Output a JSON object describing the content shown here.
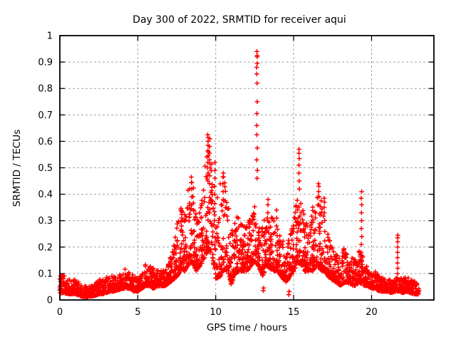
{
  "window": {
    "background": "#ffffff"
  },
  "colors": {
    "marker": "#ff0000",
    "grid": "#a0a0a0",
    "border": "#000000",
    "text": "#000000"
  },
  "chart_data": {
    "type": "scatter",
    "title": "Day 300 of 2022, SRMTID for receiver aqui",
    "xlabel": "GPS time / hours",
    "ylabel": "SRMTID / TECUs",
    "series_name": "SRMTID",
    "xlim": [
      0,
      24
    ],
    "ylim": [
      0,
      1
    ],
    "xticks": {
      "values": [
        0,
        5,
        10,
        15,
        20
      ],
      "labels": [
        "0",
        "5",
        "10",
        "15",
        "20"
      ]
    },
    "yticks": {
      "values": [
        0,
        0.1,
        0.2,
        0.3,
        0.4,
        0.5,
        0.6,
        0.7,
        0.8,
        0.9,
        1
      ],
      "labels": [
        "0",
        "0.1",
        "0.2",
        "0.3",
        "0.4",
        "0.5",
        "0.6",
        "0.7",
        "0.8",
        "0.9",
        "1"
      ]
    },
    "grid": {
      "visible": true,
      "style": "dashed"
    },
    "marker": {
      "glyph": "+",
      "size": 7
    },
    "x_start": 0.0,
    "x_end": 23.05,
    "seed": 2022300,
    "envelope": {
      "bin_hours": 0.25,
      "default_count": 30,
      "bins": [
        [
          0.0,
          0.02,
          0.09
        ],
        [
          0.25,
          0.025,
          0.1
        ],
        [
          0.5,
          0.02,
          0.08
        ],
        [
          0.75,
          0.02,
          0.075
        ],
        [
          1.0,
          0.02,
          0.08
        ],
        [
          1.25,
          0.015,
          0.065
        ],
        [
          1.5,
          0.01,
          0.055
        ],
        [
          1.75,
          0.01,
          0.05
        ],
        [
          2.0,
          0.012,
          0.055
        ],
        [
          2.25,
          0.015,
          0.06
        ],
        [
          2.5,
          0.02,
          0.08
        ],
        [
          2.75,
          0.02,
          0.075
        ],
        [
          3.0,
          0.025,
          0.1
        ],
        [
          3.25,
          0.03,
          0.085
        ],
        [
          3.5,
          0.03,
          0.1
        ],
        [
          3.75,
          0.035,
          0.09
        ],
        [
          4.0,
          0.04,
          0.11
        ],
        [
          4.25,
          0.04,
          0.12
        ],
        [
          4.5,
          0.04,
          0.115
        ],
        [
          4.75,
          0.03,
          0.09
        ],
        [
          5.0,
          0.03,
          0.08
        ],
        [
          5.25,
          0.04,
          0.1
        ],
        [
          5.5,
          0.05,
          0.135
        ],
        [
          5.75,
          0.05,
          0.13
        ],
        [
          6.0,
          0.04,
          0.12
        ],
        [
          6.25,
          0.05,
          0.11
        ],
        [
          6.5,
          0.05,
          0.12
        ],
        [
          6.75,
          0.05,
          0.13
        ],
        [
          7.0,
          0.06,
          0.15
        ],
        [
          7.25,
          0.07,
          0.19
        ],
        [
          7.5,
          0.08,
          0.28
        ],
        [
          7.75,
          0.1,
          0.35
        ],
        [
          8.0,
          0.1,
          0.32
        ],
        [
          8.25,
          0.12,
          0.43
        ],
        [
          8.5,
          0.13,
          0.47
        ],
        [
          8.75,
          0.1,
          0.35
        ],
        [
          9.0,
          0.12,
          0.33
        ],
        [
          9.25,
          0.14,
          0.5
        ],
        [
          9.5,
          0.17,
          0.62
        ],
        [
          9.75,
          0.16,
          0.52
        ],
        [
          10.0,
          0.07,
          0.36
        ],
        [
          10.25,
          0.07,
          0.44
        ],
        [
          10.5,
          0.1,
          0.48
        ],
        [
          10.75,
          0.1,
          0.4
        ],
        [
          11.0,
          0.05,
          0.25
        ],
        [
          11.25,
          0.09,
          0.33
        ],
        [
          11.5,
          0.1,
          0.31
        ],
        [
          11.75,
          0.1,
          0.33
        ],
        [
          12.0,
          0.1,
          0.29
        ],
        [
          12.25,
          0.12,
          0.31
        ],
        [
          12.5,
          0.14,
          0.36
        ],
        [
          12.75,
          0.12,
          0.31
        ],
        [
          13.0,
          0.08,
          0.28
        ],
        [
          13.25,
          0.12,
          0.38
        ],
        [
          13.5,
          0.11,
          0.31
        ],
        [
          13.75,
          0.1,
          0.35
        ],
        [
          14.0,
          0.1,
          0.26
        ],
        [
          14.25,
          0.08,
          0.23
        ],
        [
          14.5,
          0.06,
          0.21
        ],
        [
          14.75,
          0.08,
          0.24
        ],
        [
          15.0,
          0.1,
          0.3
        ],
        [
          15.25,
          0.13,
          0.42
        ],
        [
          15.5,
          0.12,
          0.38
        ],
        [
          15.75,
          0.1,
          0.3
        ],
        [
          16.0,
          0.1,
          0.31
        ],
        [
          16.25,
          0.1,
          0.36
        ],
        [
          16.5,
          0.12,
          0.44
        ],
        [
          16.75,
          0.1,
          0.39
        ],
        [
          17.0,
          0.1,
          0.31
        ],
        [
          17.25,
          0.08,
          0.26
        ],
        [
          17.5,
          0.07,
          0.21
        ],
        [
          17.75,
          0.06,
          0.18
        ],
        [
          18.0,
          0.05,
          0.16
        ],
        [
          18.25,
          0.06,
          0.2
        ],
        [
          18.5,
          0.06,
          0.18
        ],
        [
          18.75,
          0.05,
          0.16
        ],
        [
          19.0,
          0.05,
          0.15
        ],
        [
          19.25,
          0.06,
          0.2
        ],
        [
          19.5,
          0.05,
          0.16
        ],
        [
          19.75,
          0.05,
          0.14
        ],
        [
          20.0,
          0.04,
          0.12
        ],
        [
          20.25,
          0.04,
          0.11
        ],
        [
          20.5,
          0.03,
          0.09
        ],
        [
          20.75,
          0.03,
          0.085
        ],
        [
          21.0,
          0.03,
          0.08
        ],
        [
          21.25,
          0.025,
          0.08
        ],
        [
          21.5,
          0.03,
          0.085
        ],
        [
          21.75,
          0.03,
          0.09
        ],
        [
          22.0,
          0.025,
          0.08
        ],
        [
          22.25,
          0.03,
          0.09
        ],
        [
          22.5,
          0.025,
          0.075
        ],
        [
          22.75,
          0.02,
          0.08
        ],
        [
          23.0,
          0.02,
          0.06,
          8
        ]
      ]
    },
    "spikes": [
      {
        "x": 7.8,
        "values": [
          0.28,
          0.31,
          0.34
        ]
      },
      {
        "x": 8.45,
        "values": [
          0.36,
          0.39,
          0.42,
          0.445,
          0.465
        ]
      },
      {
        "x": 9.5,
        "values": [
          0.45,
          0.48,
          0.5,
          0.52,
          0.545,
          0.565,
          0.585,
          0.6,
          0.615,
          0.625
        ]
      },
      {
        "x": 9.62,
        "values": [
          0.44,
          0.47,
          0.5,
          0.53,
          0.555,
          0.58,
          0.61
        ]
      },
      {
        "x": 9.95,
        "values": [
          0.4,
          0.43,
          0.46,
          0.49,
          0.52
        ]
      },
      {
        "x": 10.48,
        "values": [
          0.38,
          0.41,
          0.44,
          0.465,
          0.48
        ]
      },
      {
        "x": 12.65,
        "values": [
          0.46,
          0.49,
          0.53,
          0.575,
          0.625,
          0.66,
          0.705,
          0.75,
          0.82,
          0.855,
          0.88,
          0.895,
          0.92,
          0.925,
          0.94
        ]
      },
      {
        "x": 13.05,
        "values": [
          0.035,
          0.045
        ]
      },
      {
        "x": 13.35,
        "values": [
          0.3,
          0.33,
          0.36,
          0.38
        ]
      },
      {
        "x": 13.9,
        "values": [
          0.28,
          0.31,
          0.34
        ]
      },
      {
        "x": 14.7,
        "values": [
          0.02,
          0.032
        ]
      },
      {
        "x": 15.35,
        "values": [
          0.42,
          0.45,
          0.48,
          0.51,
          0.535,
          0.555,
          0.57
        ]
      },
      {
        "x": 16.6,
        "values": [
          0.36,
          0.39,
          0.41,
          0.43,
          0.44
        ]
      },
      {
        "x": 16.97,
        "values": [
          0.33,
          0.35,
          0.37,
          0.385
        ]
      },
      {
        "x": 19.35,
        "values": [
          0.15,
          0.18,
          0.21,
          0.24,
          0.27,
          0.3,
          0.33,
          0.36,
          0.385,
          0.41
        ]
      },
      {
        "x": 21.68,
        "values": [
          0.1,
          0.12,
          0.14,
          0.16,
          0.18,
          0.2,
          0.22,
          0.235,
          0.245
        ]
      }
    ]
  }
}
